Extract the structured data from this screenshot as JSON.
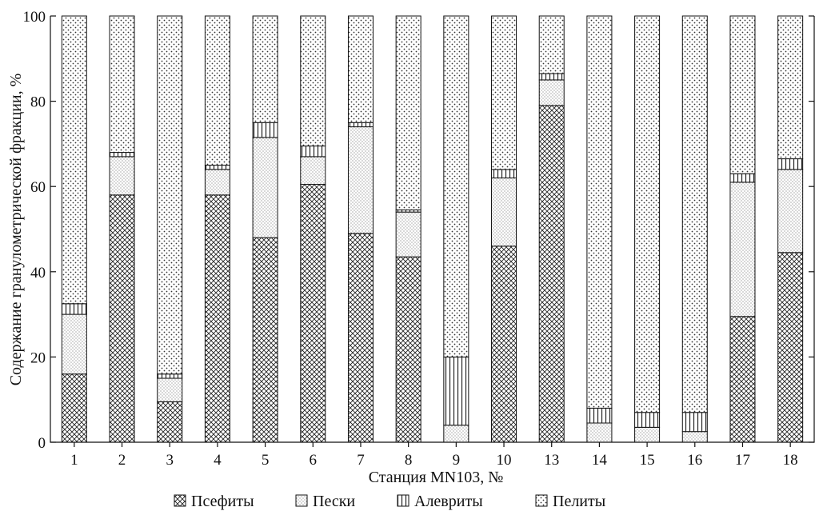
{
  "chart_data": {
    "type": "bar",
    "stacked": true,
    "xlabel": "Станция MN103, №",
    "ylabel": "Содержание гранулометрической фракции, %",
    "ylim": [
      0,
      100
    ],
    "yticks": [
      "0",
      "20",
      "40",
      "60",
      "80",
      "100"
    ],
    "grid": false,
    "legend_position": "bottom",
    "categories": [
      "1",
      "2",
      "3",
      "4",
      "5",
      "6",
      "7",
      "8",
      "9",
      "10",
      "13",
      "14",
      "15",
      "16",
      "17",
      "18"
    ],
    "series": [
      {
        "name": "Псефиты",
        "pattern": "crosshatch",
        "values": [
          16,
          58,
          9.5,
          58,
          48,
          60.5,
          49,
          43.5,
          0,
          46,
          79,
          0,
          0,
          0,
          29.5,
          44.5
        ]
      },
      {
        "name": "Пески",
        "pattern": "fine-dots",
        "values": [
          14,
          9,
          5.5,
          6,
          23.5,
          6.5,
          25,
          10.5,
          4,
          16,
          6,
          4.5,
          3.5,
          2.5,
          31.5,
          19.5
        ]
      },
      {
        "name": "Алевриты",
        "pattern": "vertical-lines",
        "values": [
          2.5,
          1,
          1,
          1,
          3.5,
          2.5,
          1,
          0.5,
          16,
          2,
          1.5,
          3.5,
          3.5,
          4.5,
          2,
          2.5
        ]
      },
      {
        "name": "Пелиты",
        "pattern": "coarse-dots",
        "values": [
          67.5,
          32,
          84,
          35,
          25,
          30.5,
          25,
          45.5,
          80,
          36,
          13.5,
          92,
          93,
          93,
          37,
          33.5
        ]
      }
    ]
  }
}
